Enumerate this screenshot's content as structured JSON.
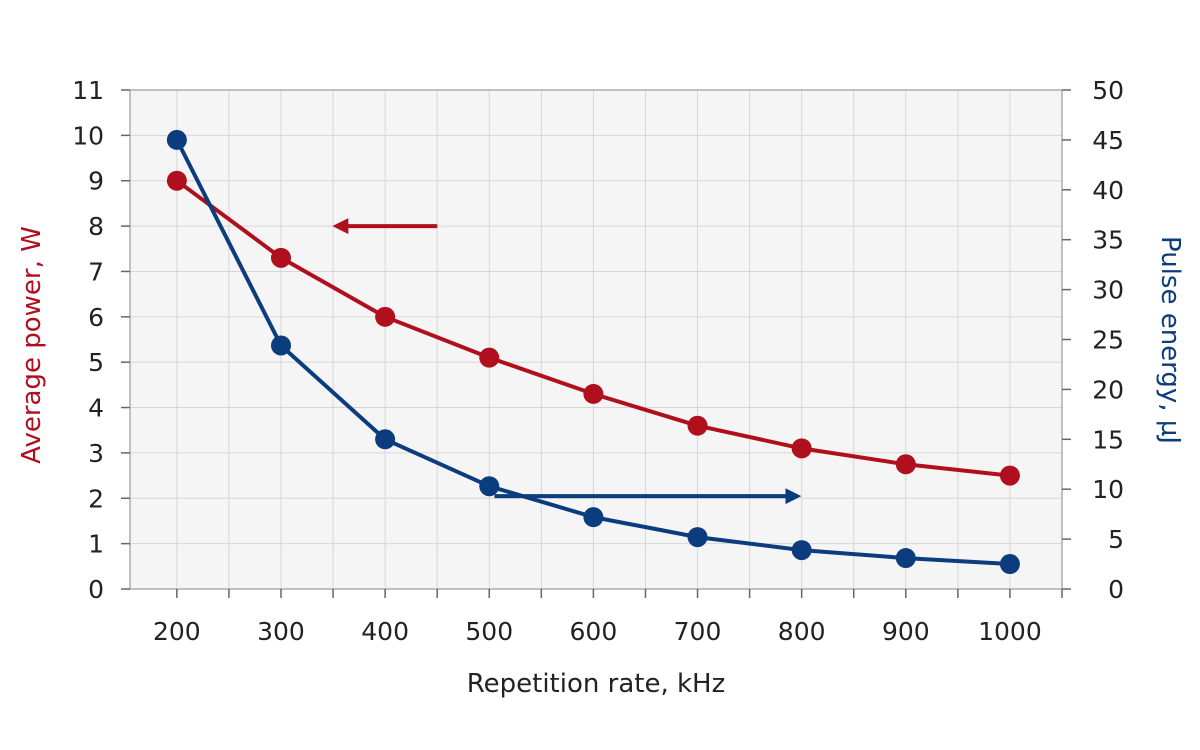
{
  "chart_data": {
    "type": "line",
    "x": [
      200,
      300,
      400,
      500,
      600,
      700,
      800,
      900,
      1000
    ],
    "xlabel": "Repetition rate, kHz",
    "xlim": [
      155,
      1050
    ],
    "x_ticks": [
      200,
      300,
      400,
      500,
      600,
      700,
      800,
      900,
      1000
    ],
    "ylabel_left": "Average power, W",
    "ylim_left": [
      0,
      11
    ],
    "y_ticks_left": [
      0,
      1,
      2,
      3,
      4,
      5,
      6,
      7,
      8,
      9,
      10,
      11
    ],
    "ylabel_right": "Pulse energy, µJ",
    "ylim_right": [
      0,
      50
    ],
    "y_ticks_right": [
      0,
      5,
      10,
      15,
      20,
      25,
      30,
      35,
      40,
      45,
      50
    ],
    "grid": true,
    "series": [
      {
        "axis": "left",
        "color": "#b0101e",
        "values": [
          9.0,
          7.3,
          6.0,
          5.1,
          4.3,
          3.6,
          3.1,
          2.75,
          2.5
        ]
      },
      {
        "axis": "right",
        "color": "#0b3d7e",
        "values": [
          45,
          24.4,
          15.0,
          10.3,
          7.2,
          5.2,
          3.9,
          3.1,
          2.5
        ]
      }
    ],
    "annotations": [
      {
        "type": "arrow",
        "points_to": "left-axis",
        "color": "#b0101e"
      },
      {
        "type": "arrow",
        "points_to": "right-axis",
        "color": "#0b3d7e"
      }
    ]
  }
}
